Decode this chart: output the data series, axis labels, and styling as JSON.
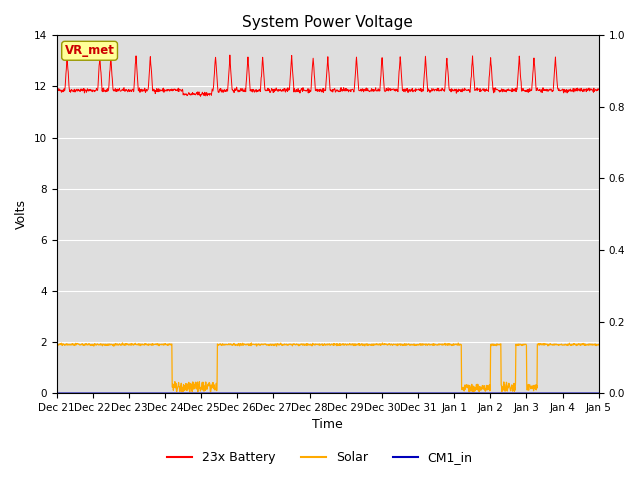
{
  "title": "System Power Voltage",
  "xlabel": "Time",
  "ylabel": "Volts",
  "background_color": "#ffffff",
  "plot_bg_color": "#dedede",
  "ylim_left": [
    0,
    14
  ],
  "ylim_right": [
    0.0,
    1.0
  ],
  "yticks_left": [
    0,
    2,
    4,
    6,
    8,
    10,
    12,
    14
  ],
  "yticks_right": [
    0.0,
    0.2,
    0.4,
    0.6,
    0.8,
    1.0
  ],
  "total_days": 15,
  "x_tick_labels": [
    "Dec 21",
    "Dec 22",
    "Dec 23",
    "Dec 24",
    "Dec 25",
    "Dec 26",
    "Dec 27",
    "Dec 28",
    "Dec 29",
    "Dec 30",
    "Dec 31",
    "Jan 1",
    "Jan 2",
    "Jan 3",
    "Jan 4",
    "Jan 5"
  ],
  "battery_color": "#ff0000",
  "solar_color": "#ffaa00",
  "cm1_color": "#0000bb",
  "legend_labels": [
    "23x Battery",
    "Solar",
    "CM1_in"
  ],
  "vr_met_label": "VR_met",
  "vr_met_bg": "#ffff99",
  "vr_met_border": "#999900",
  "vr_met_text_color": "#cc0000",
  "title_fontsize": 11,
  "axis_label_fontsize": 9,
  "tick_fontsize": 7.5,
  "legend_fontsize": 9,
  "battery_base": 11.85,
  "solar_base": 1.9,
  "battery_spike_positions": [
    0.3,
    1.2,
    1.5,
    2.2,
    2.6,
    4.4,
    4.8,
    5.3,
    5.7,
    6.5,
    7.1,
    7.5,
    8.3,
    9.0,
    9.5,
    10.2,
    10.8,
    11.5,
    12.0,
    12.8,
    13.2,
    13.8
  ],
  "solar_drop1": [
    3.2,
    4.45
  ],
  "solar_drop2": [
    11.2,
    12.0
  ],
  "solar_drop3": [
    12.3,
    12.7
  ],
  "solar_drop4": [
    13.0,
    13.3
  ],
  "battery_dip": [
    3.5,
    4.3
  ]
}
